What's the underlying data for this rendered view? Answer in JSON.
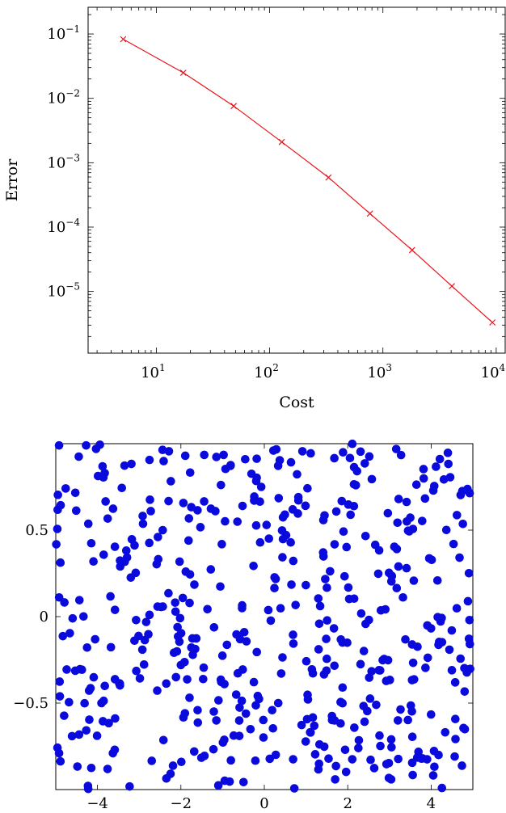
{
  "chart_data": [
    {
      "type": "line",
      "xlabel": "Cost",
      "ylabel": "Error",
      "xscale": "log",
      "yscale": "log",
      "xlim": [
        2.5,
        12000
      ],
      "ylim": [
        1.1e-06,
        0.26
      ],
      "grid": false,
      "color": "#e8141b",
      "marker": "x",
      "x_ticks": [
        {
          "value": 10,
          "base": "10",
          "exp": "1"
        },
        {
          "value": 100,
          "base": "10",
          "exp": "2"
        },
        {
          "value": 1000,
          "base": "10",
          "exp": "3"
        },
        {
          "value": 10000,
          "base": "10",
          "exp": "4"
        }
      ],
      "y_ticks": [
        {
          "value": 0.1,
          "base": "10",
          "exp": "−1"
        },
        {
          "value": 0.01,
          "base": "10",
          "exp": "−2"
        },
        {
          "value": 0.001,
          "base": "10",
          "exp": "−3"
        },
        {
          "value": 0.0001,
          "base": "10",
          "exp": "−4"
        },
        {
          "value": 1e-05,
          "base": "10",
          "exp": "−5"
        }
      ],
      "series": [
        {
          "x": [
            5.1,
            17.3,
            48.2,
            128,
            331,
            768,
            1810,
            4060,
            9250
          ],
          "y": [
            0.083,
            0.025,
            0.0076,
            0.0021,
            0.00059,
            0.000162,
            4.4e-05,
            1.21e-05,
            3.3e-06
          ]
        }
      ]
    },
    {
      "type": "scatter",
      "xlabel": "",
      "ylabel": "",
      "xlim": [
        -5,
        5
      ],
      "ylim": [
        -1,
        1
      ],
      "grid": false,
      "color": "#0a0adc",
      "x_ticks": [
        {
          "value": -4,
          "label": "−4"
        },
        {
          "value": -2,
          "label": "−2"
        },
        {
          "value": 0,
          "label": "0"
        },
        {
          "value": 2,
          "label": "2"
        },
        {
          "value": 4,
          "label": "4"
        }
      ],
      "y_ticks": [
        {
          "value": 0.5,
          "label": "0.5"
        },
        {
          "value": 0,
          "label": "0"
        },
        {
          "value": -0.5,
          "label": "−0.5"
        }
      ],
      "point_count": 500,
      "series": [
        {
          "x": [],
          "y": []
        }
      ]
    }
  ]
}
